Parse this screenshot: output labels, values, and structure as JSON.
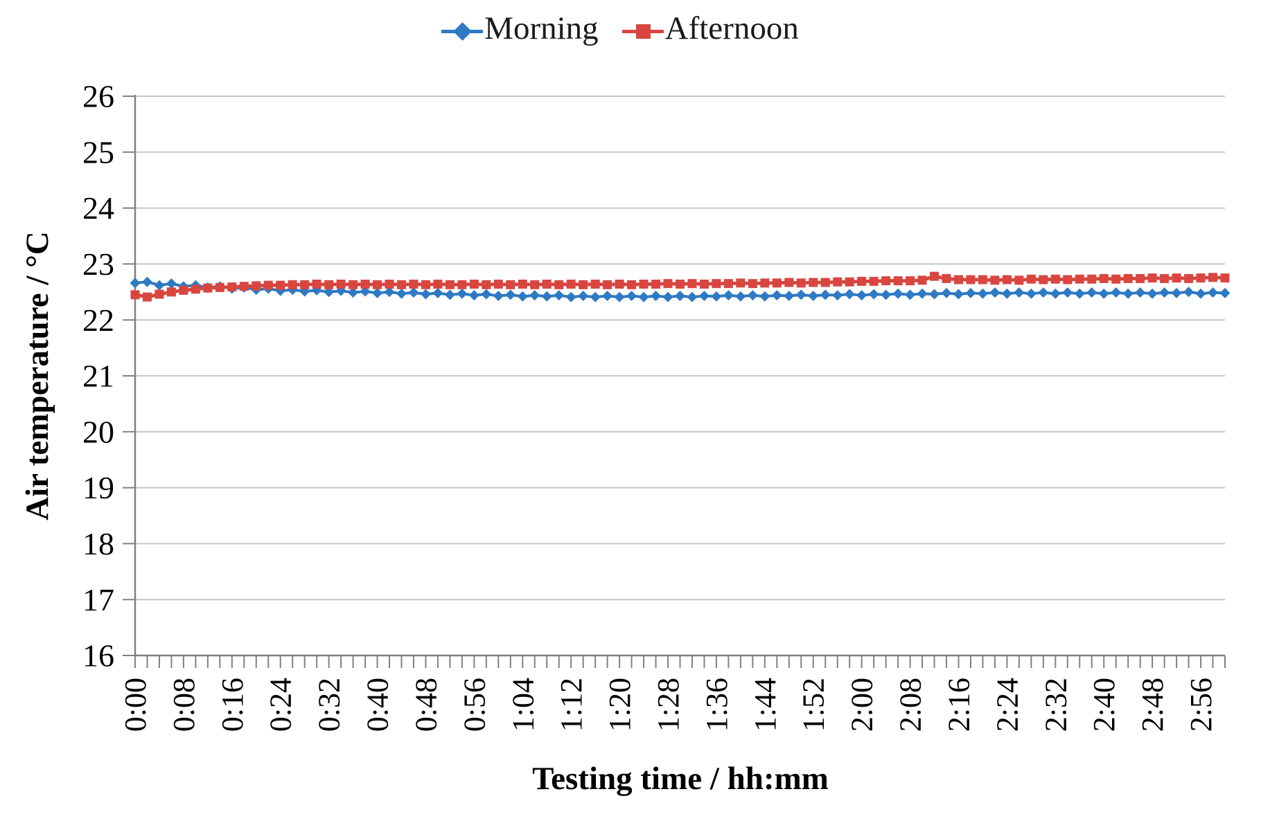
{
  "legend": {
    "items": [
      {
        "label": "Morning",
        "color": "#2E79C3",
        "marker": "diamond"
      },
      {
        "label": "Afternoon",
        "color": "#D8463F",
        "marker": "square"
      }
    ]
  },
  "chart_data": {
    "type": "line",
    "title": "",
    "xlabel": "Testing time / hh:mm",
    "ylabel": "Air temperature / °C",
    "ylim": [
      16,
      26
    ],
    "ytick_step": 1,
    "y_tick_labels": [
      "16",
      "17",
      "18",
      "19",
      "20",
      "21",
      "22",
      "23",
      "24",
      "25",
      "26"
    ],
    "x_range_minutes": [
      0,
      180
    ],
    "x_minutes_per_point": 2,
    "x_minor_tick_minutes": 2,
    "x_label_interval_minutes": 8,
    "x_tick_labels": [
      "0:00",
      "0:08",
      "0:16",
      "0:24",
      "0:32",
      "0:40",
      "0:48",
      "0:56",
      "1:04",
      "1:12",
      "1:20",
      "1:28",
      "1:36",
      "1:44",
      "1:52",
      "2:00",
      "2:08",
      "2:16",
      "2:24",
      "2:32",
      "2:40",
      "2:48",
      "2:56"
    ],
    "grid": "horizontal",
    "grid_color": "#C6C6C6",
    "axis_color": "#808080",
    "legend_position": "top-center",
    "series": [
      {
        "name": "Morning",
        "color": "#2E79C3",
        "marker": "diamond",
        "values": [
          22.66,
          22.68,
          22.62,
          22.65,
          22.6,
          22.62,
          22.58,
          22.6,
          22.56,
          22.58,
          22.54,
          22.56,
          22.52,
          22.54,
          22.51,
          22.53,
          22.5,
          22.52,
          22.49,
          22.51,
          22.48,
          22.5,
          22.47,
          22.49,
          22.46,
          22.48,
          22.45,
          22.47,
          22.44,
          22.46,
          22.43,
          22.45,
          22.42,
          22.44,
          22.42,
          22.44,
          22.41,
          22.43,
          22.41,
          22.43,
          22.41,
          22.43,
          22.41,
          22.43,
          22.41,
          22.43,
          22.41,
          22.43,
          22.42,
          22.44,
          22.42,
          22.44,
          22.42,
          22.44,
          22.43,
          22.45,
          22.43,
          22.45,
          22.44,
          22.46,
          22.44,
          22.46,
          22.45,
          22.47,
          22.45,
          22.47,
          22.46,
          22.48,
          22.46,
          22.48,
          22.47,
          22.49,
          22.47,
          22.49,
          22.47,
          22.49,
          22.47,
          22.49,
          22.47,
          22.49,
          22.47,
          22.49,
          22.47,
          22.49,
          22.47,
          22.49,
          22.48,
          22.5,
          22.47,
          22.49,
          22.48
        ]
      },
      {
        "name": "Afternoon",
        "color": "#D8463F",
        "marker": "square",
        "values": [
          22.45,
          22.41,
          22.46,
          22.5,
          22.53,
          22.55,
          22.57,
          22.58,
          22.59,
          22.6,
          22.61,
          22.62,
          22.62,
          22.63,
          22.63,
          22.64,
          22.63,
          22.64,
          22.63,
          22.64,
          22.63,
          22.64,
          22.63,
          22.64,
          22.63,
          22.64,
          22.63,
          22.63,
          22.64,
          22.63,
          22.64,
          22.63,
          22.64,
          22.63,
          22.64,
          22.63,
          22.64,
          22.63,
          22.64,
          22.63,
          22.64,
          22.63,
          22.64,
          22.64,
          22.65,
          22.64,
          22.65,
          22.64,
          22.65,
          22.65,
          22.66,
          22.65,
          22.66,
          22.66,
          22.67,
          22.66,
          22.67,
          22.67,
          22.68,
          22.68,
          22.69,
          22.69,
          22.7,
          22.7,
          22.7,
          22.71,
          22.78,
          22.74,
          22.72,
          22.72,
          22.72,
          22.71,
          22.72,
          22.71,
          22.73,
          22.72,
          22.73,
          22.72,
          22.73,
          22.73,
          22.74,
          22.73,
          22.74,
          22.74,
          22.75,
          22.74,
          22.75,
          22.74,
          22.75,
          22.76,
          22.75
        ]
      }
    ]
  }
}
